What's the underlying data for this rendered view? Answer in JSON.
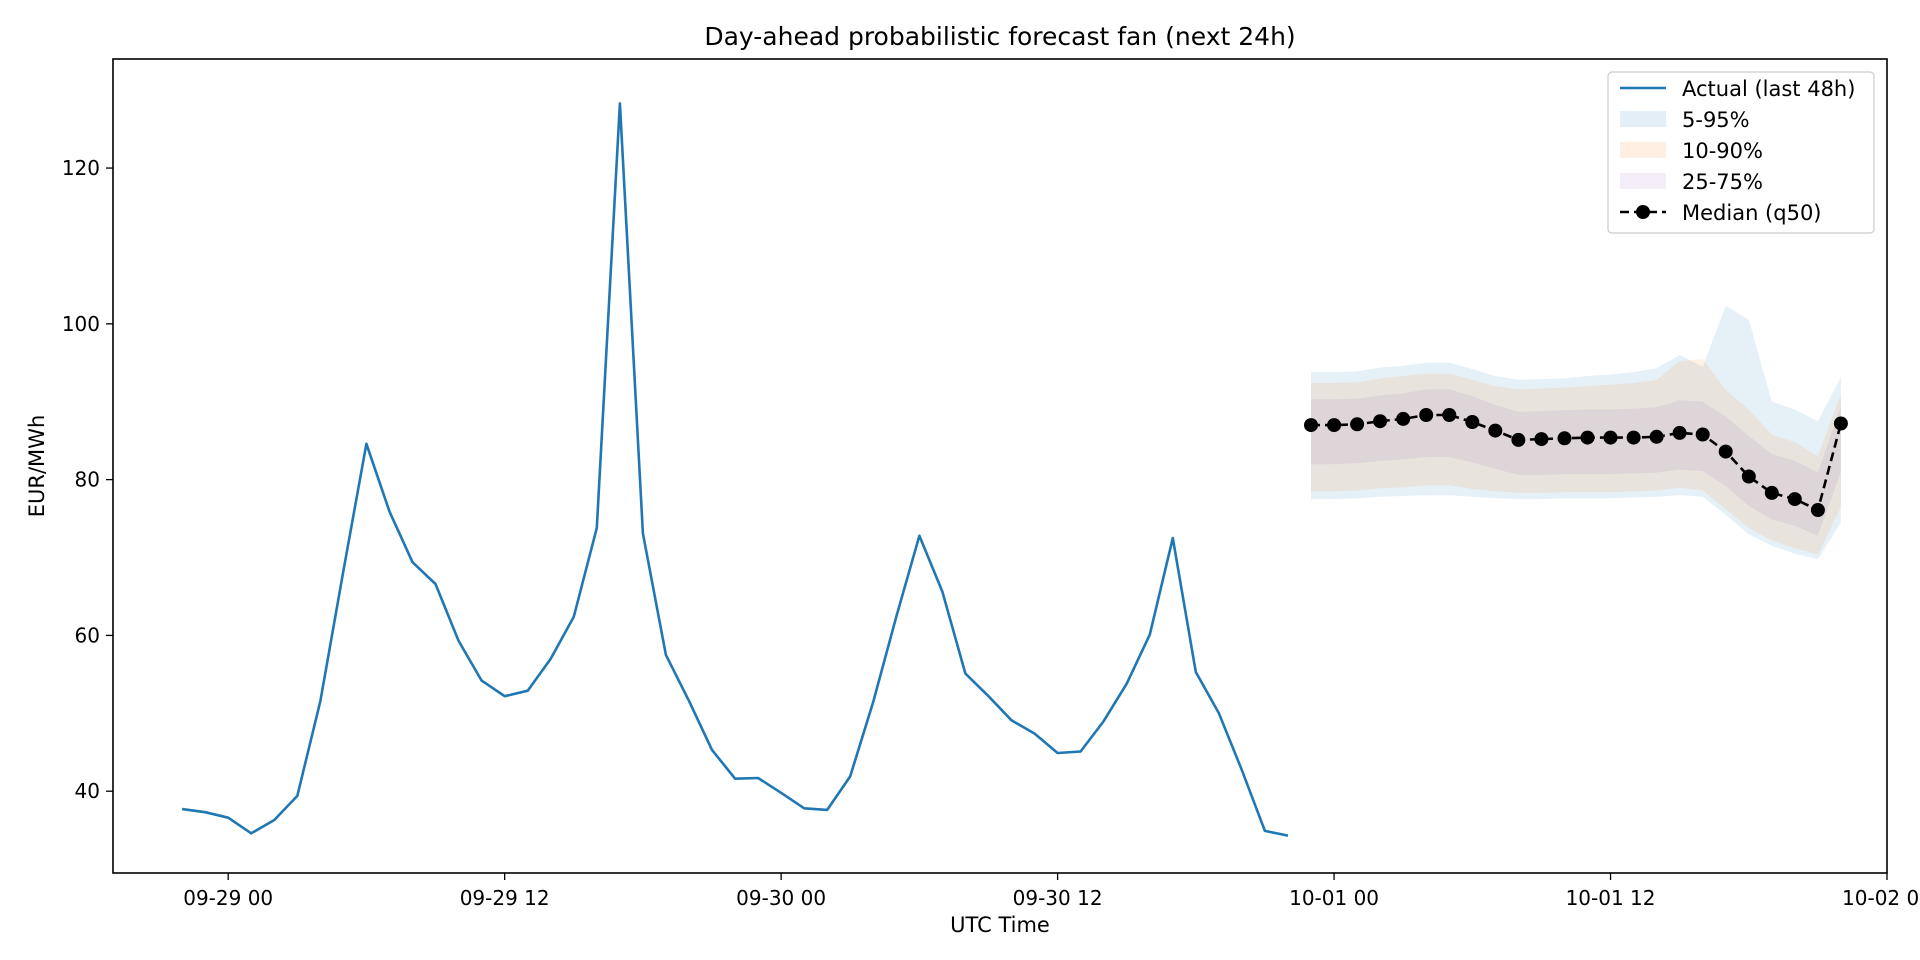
{
  "chart_data": {
    "type": "line",
    "title": "Day-ahead probabilistic forecast fan (next 24h)",
    "xlabel": "UTC Time",
    "ylabel": "EUR/MWh",
    "x_axis": {
      "range": [
        "2025-09-28 19:00",
        "2025-10-02 00:00"
      ],
      "ticks": [
        "09-29 00",
        "09-29 12",
        "09-30 00",
        "09-30 12",
        "10-01 00",
        "10-01 12",
        "10-02 00"
      ]
    },
    "ylim": [
      29.5,
      134
    ],
    "y_ticks": [
      40,
      60,
      80,
      100,
      120
    ],
    "grid": false,
    "legend_position": "top-right",
    "legend": [
      "Actual (last 48h)",
      "5-95%",
      "10-90%",
      "25-75%",
      "Median (q50)"
    ],
    "colors": {
      "actual": "#1f77b4",
      "band_5_95": "#1f77b4",
      "band_10_90": "#ff7f0e",
      "band_25_75": "#9467bd",
      "median": "#000000"
    },
    "actual": {
      "name": "Actual (last 48h)",
      "start": "2025-09-28 22:00",
      "step_hours": 1,
      "values": [
        37.7,
        37.3,
        36.6,
        34.6,
        36.3,
        39.4,
        51.6,
        68.3,
        84.6,
        75.9,
        69.4,
        66.6,
        59.3,
        54.2,
        52.2,
        52.9,
        57.0,
        62.4,
        73.8,
        128.3,
        73.1,
        57.5,
        51.6,
        45.3,
        41.6,
        41.7,
        39.8,
        37.8,
        37.6,
        41.9,
        51.5,
        62.4,
        72.8,
        65.6,
        55.1,
        52.2,
        49.1,
        47.4,
        44.9,
        45.1,
        49.0,
        53.8,
        60.1,
        72.5,
        55.3,
        50.0,
        42.7,
        34.9,
        34.3
      ]
    },
    "forecast": {
      "start": "2025-09-30 23:00",
      "step_hours": 1,
      "median": {
        "name": "Median (q50)",
        "values": [
          87.0,
          87.0,
          87.1,
          87.5,
          87.8,
          88.3,
          88.3,
          87.4,
          86.3,
          85.1,
          85.2,
          85.3,
          85.4,
          85.4,
          85.4,
          85.5,
          86.0,
          85.8,
          83.6,
          80.4,
          78.3,
          77.5,
          76.1,
          87.2
        ]
      },
      "bands": [
        {
          "name": "5-95%",
          "lower": [
            77.5,
            77.5,
            77.6,
            77.8,
            77.9,
            78.0,
            78.0,
            77.8,
            77.6,
            77.5,
            77.5,
            77.6,
            77.6,
            77.6,
            77.7,
            77.8,
            78.0,
            77.8,
            75.5,
            73.0,
            71.5,
            70.5,
            69.8,
            74.5
          ],
          "upper": [
            93.8,
            93.8,
            93.9,
            94.4,
            94.6,
            95.0,
            95.0,
            94.2,
            93.3,
            92.8,
            92.9,
            93.0,
            93.3,
            93.5,
            93.8,
            94.3,
            96.0,
            94.5,
            102.3,
            100.5,
            90.0,
            89.0,
            87.5,
            93.2
          ]
        },
        {
          "name": "10-90%",
          "lower": [
            78.5,
            78.5,
            78.6,
            78.9,
            79.0,
            79.3,
            79.3,
            78.8,
            78.5,
            78.3,
            78.3,
            78.4,
            78.4,
            78.4,
            78.5,
            78.6,
            79.0,
            78.6,
            76.2,
            73.8,
            72.2,
            71.2,
            70.4,
            76.5
          ],
          "upper": [
            92.4,
            92.4,
            92.5,
            93.0,
            93.3,
            93.6,
            93.6,
            92.8,
            92.0,
            91.6,
            91.7,
            91.8,
            92.0,
            92.2,
            92.4,
            92.8,
            95.2,
            95.5,
            91.5,
            89.0,
            85.8,
            84.8,
            83.0,
            91.0
          ]
        },
        {
          "name": "25-75%",
          "lower": [
            82.0,
            82.0,
            82.1,
            82.4,
            82.6,
            82.9,
            82.9,
            82.2,
            81.4,
            80.6,
            80.6,
            80.7,
            80.7,
            80.7,
            80.8,
            80.9,
            81.3,
            81.1,
            79.2,
            76.6,
            74.9,
            74.1,
            72.8,
            81.0
          ],
          "upper": [
            90.3,
            90.3,
            90.4,
            90.8,
            91.1,
            91.6,
            91.6,
            90.7,
            89.6,
            88.7,
            88.8,
            88.9,
            89.0,
            89.0,
            89.1,
            89.3,
            90.2,
            90.0,
            88.1,
            85.6,
            83.3,
            82.4,
            80.9,
            89.5
          ]
        }
      ]
    }
  }
}
